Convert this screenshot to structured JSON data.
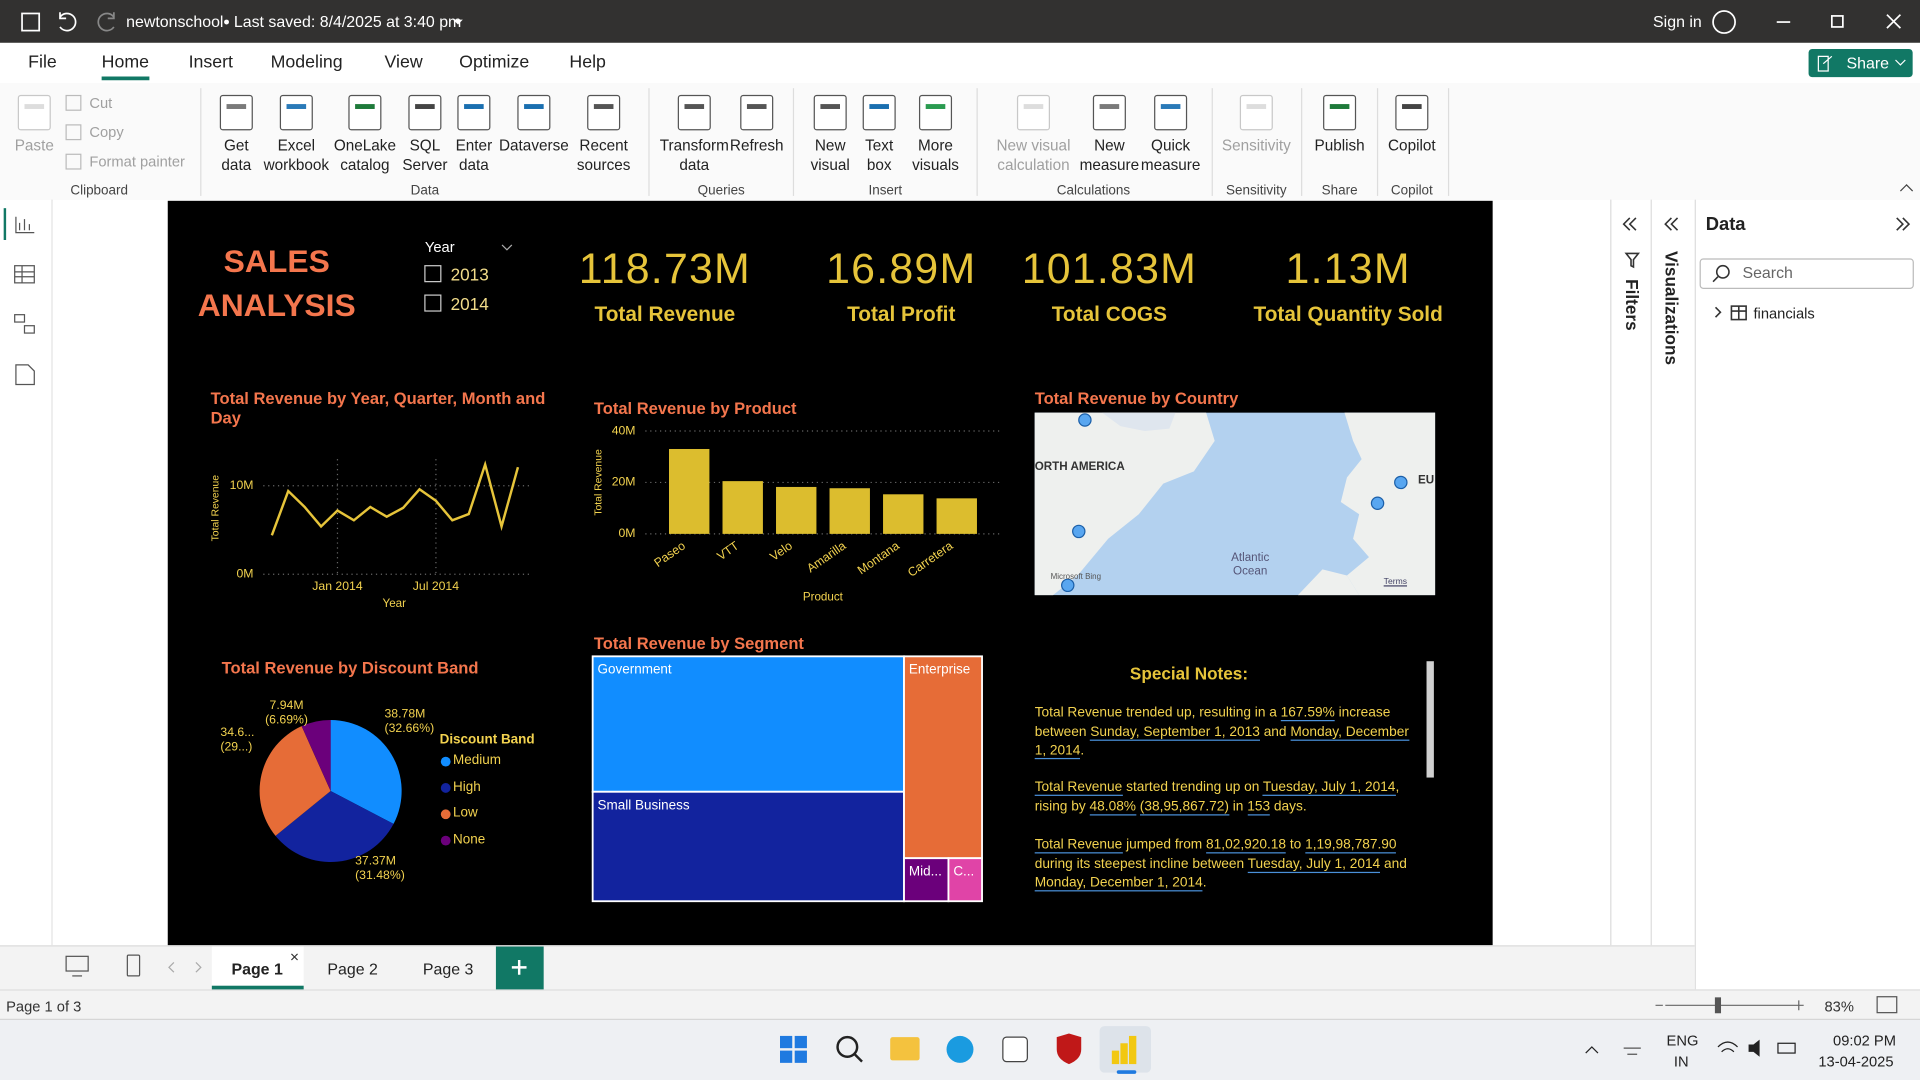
{
  "title_bar": {
    "file_name": "newtonschool",
    "saved": "Last saved: 8/4/2025 at 3:40 pm",
    "sign_in": "Sign in"
  },
  "menu": {
    "tabs": [
      "File",
      "Home",
      "Insert",
      "Modeling",
      "View",
      "Optimize",
      "Help"
    ],
    "active": 1,
    "share": "Share"
  },
  "ribbon": {
    "groups": [
      {
        "name": "Clipboard",
        "buttons": [
          "Paste"
        ],
        "small": [
          "Cut",
          "Copy",
          "Format painter"
        ]
      },
      {
        "name": "Data",
        "buttons": [
          "Get\ndata",
          "Excel\nworkbook",
          "OneLake\ncatalog",
          "SQL\nServer",
          "Enter\ndata",
          "Dataverse",
          "Recent\nsources"
        ]
      },
      {
        "name": "Queries",
        "buttons": [
          "Transform\ndata",
          "Refresh"
        ]
      },
      {
        "name": "Insert",
        "buttons": [
          "New\nvisual",
          "Text\nbox",
          "More\nvisuals"
        ]
      },
      {
        "name": "Calculations",
        "buttons": [
          "New visual\ncalculation",
          "New\nmeasure",
          "Quick\nmeasure"
        ]
      },
      {
        "name": "Sensitivity",
        "buttons": [
          "Sensitivity"
        ]
      },
      {
        "name": "Share",
        "buttons": [
          "Publish"
        ]
      },
      {
        "name": "Copilot",
        "buttons": [
          "Copilot"
        ]
      }
    ]
  },
  "report": {
    "title": "SALES ANALYSIS",
    "slicer": {
      "title": "Year",
      "options": [
        "2013",
        "2014"
      ]
    },
    "cards": [
      {
        "value": "118.73M",
        "label": "Total Revenue"
      },
      {
        "value": "16.89M",
        "label": "Total Profit"
      },
      {
        "value": "101.83M",
        "label": "Total COGS"
      },
      {
        "value": "1.13M",
        "label": "Total Quantity Sold"
      }
    ],
    "line_chart": {
      "type": "line",
      "title": "Total Revenue by Year, Quarter, Month and Day",
      "y_label": "Total Revenue",
      "x_label": "Year",
      "categories": [
        null,
        null,
        null,
        null,
        "Jan 2014",
        null,
        null,
        null,
        null,
        null,
        "Jul 2014",
        null,
        null,
        null,
        null,
        null
      ],
      "values": [
        4400000,
        9400000,
        7600000,
        5400000,
        7200000,
        6100000,
        7600000,
        6500000,
        7500000,
        9600000,
        8300000,
        6100000,
        6800000,
        12400000,
        5400000,
        12100000
      ],
      "color": "#e6c43a",
      "ylim": [
        0,
        13000000
      ],
      "yticks": [
        {
          "value": 0,
          "label": "0M"
        },
        {
          "value": 10000000,
          "label": "10M"
        }
      ],
      "grid": true
    },
    "bar_chart": {
      "type": "bar",
      "title": "Total Revenue by Product",
      "y_label": "Total Revenue",
      "x_label": "Product",
      "categories": [
        "Paseo",
        "VTT",
        "Velo",
        "Amarilla",
        "Montana",
        "Carretera"
      ],
      "values": [
        33010000,
        20510000,
        18250000,
        17750000,
        15390000,
        13820000
      ],
      "color": "#dcbd2e",
      "ylim": [
        0,
        40000000
      ],
      "yticks": [
        {
          "value": 0,
          "label": "0M"
        },
        {
          "value": 20000000,
          "label": "20M"
        },
        {
          "value": 40000000,
          "label": "40M"
        }
      ],
      "grid": true
    },
    "map": {
      "title": "Total Revenue by Country",
      "labels": [
        "ORTH AMERICA",
        "EU",
        "Atlantic\nOcean"
      ],
      "attribution": "Microsoft Bing",
      "terms": "Terms"
    },
    "pie_chart": {
      "type": "pie",
      "title": "Total Revenue by Discount Band",
      "legend_title": "Discount Band",
      "categories": [
        "Medium",
        "High",
        "Low",
        "None"
      ],
      "values": [
        38780000,
        37370000,
        34640000,
        7940000
      ],
      "value_labels": [
        "38.78M\n(32.66%)",
        "37.37M\n(31.48%)",
        "34.6...\n(29...)",
        "7.94M\n(6.69%)"
      ],
      "colors": [
        "#118dff",
        "#12239e",
        "#e66c37",
        "#6b007b"
      ]
    },
    "treemap": {
      "type": "treemap",
      "title": "Total Revenue by Segment",
      "categories": [
        "Government",
        "Small Business",
        "Enterprise",
        "Mid...",
        "C..."
      ],
      "values": [
        52500000,
        42430000,
        19610000,
        2380000,
        1800000
      ],
      "colors": [
        "#118dff",
        "#12239e",
        "#e66c37",
        "#6b007b",
        "#e044a7"
      ]
    },
    "notes": {
      "title": "Special Notes:",
      "paragraphs": [
        [
          {
            "text": "Total Revenue trended up, resulting in a "
          },
          {
            "text": "167.59%",
            "link": true
          },
          {
            "text": " increase between "
          },
          {
            "text": "Sunday, September 1, 2013",
            "link": true
          },
          {
            "text": " and "
          },
          {
            "text": "Monday, December 1, 2014",
            "link": true
          },
          {
            "text": "."
          }
        ],
        [
          {
            "text": "Total Revenue",
            "link": true
          },
          {
            "text": " started trending up on "
          },
          {
            "text": "Tuesday, July 1, 2014",
            "link": true
          },
          {
            "text": ", rising by "
          },
          {
            "text": "48.08%",
            "link": true
          },
          {
            "text": " "
          },
          {
            "text": "(38,95,867.72)",
            "link": true
          },
          {
            "text": " in "
          },
          {
            "text": "153",
            "link": true
          },
          {
            "text": " days."
          }
        ],
        [
          {
            "text": "Total Revenue",
            "link": true
          },
          {
            "text": " jumped from "
          },
          {
            "text": "81,02,920.18",
            "link": true
          },
          {
            "text": " to "
          },
          {
            "text": "1,19,98,787.90",
            "link": true
          },
          {
            "text": " during its steepest incline between "
          },
          {
            "text": "Tuesday, July 1, 2014",
            "link": true
          },
          {
            "text": " and "
          },
          {
            "text": "Monday, December 1, 2014",
            "link": true
          },
          {
            "text": "."
          }
        ]
      ]
    }
  },
  "panes": {
    "filters": "Filters",
    "visualizations": "Visualizations",
    "data": {
      "title": "Data",
      "search": "Search",
      "tables": [
        "financials"
      ]
    }
  },
  "pages": {
    "tabs": [
      "Page 1",
      "Page 2",
      "Page 3"
    ],
    "active": 0,
    "status": "Page 1 of 3",
    "zoom": "83%"
  },
  "taskbar": {
    "language": "ENG",
    "region": "IN",
    "time": "09:02 PM",
    "date": "13-04-2025"
  }
}
